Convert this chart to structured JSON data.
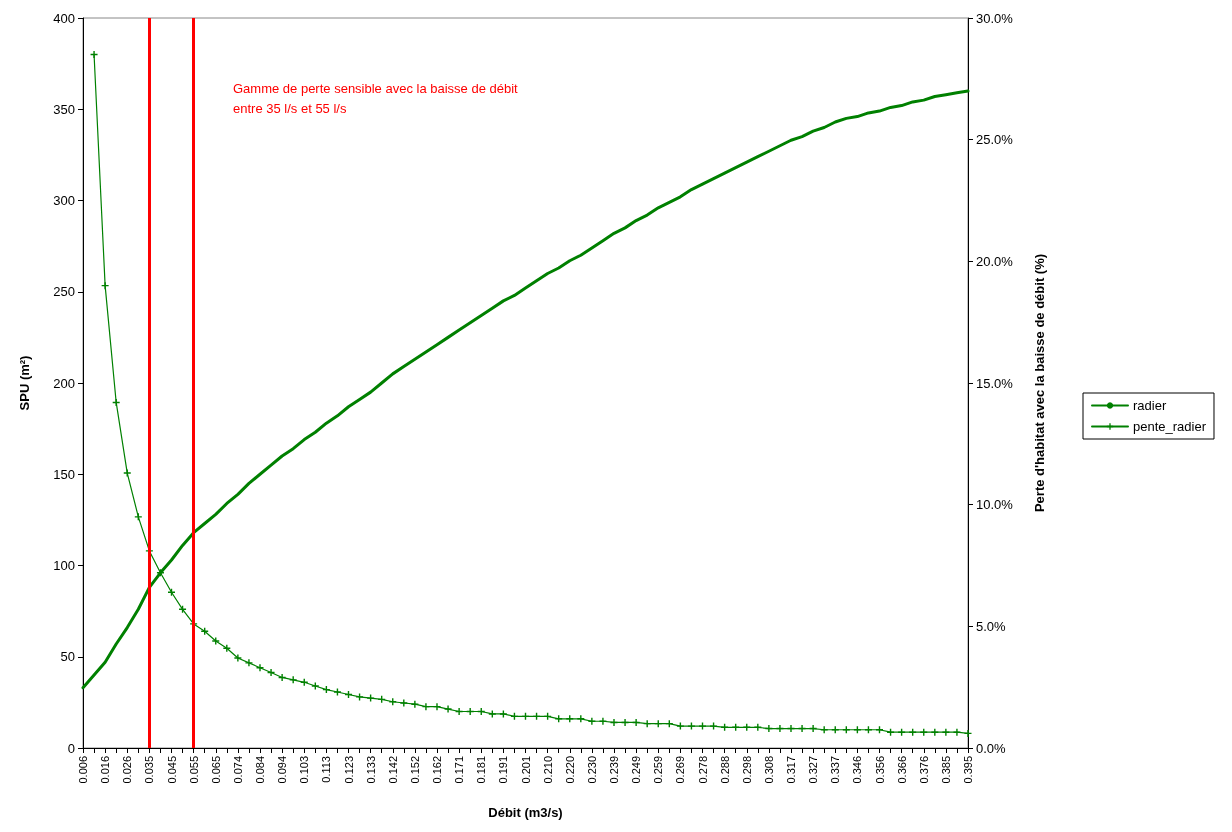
{
  "chart_data": {
    "type": "line",
    "xlabel": "Débit (m3/s)",
    "ylabel": "SPU (m²)",
    "y2label": "Perte d'habitat avec la baisse de débit (%)",
    "categories": [
      "0.006",
      null,
      "0.016",
      null,
      "0.026",
      null,
      "0.035",
      null,
      "0.045",
      null,
      "0.055",
      null,
      "0.065",
      null,
      "0.074",
      null,
      "0.084",
      null,
      "0.094",
      null,
      "0.103",
      null,
      "0.113",
      null,
      "0.123",
      null,
      "0.133",
      null,
      "0.142",
      null,
      "0.152",
      null,
      "0.162",
      null,
      "0.171",
      null,
      "0.181",
      null,
      "0.191",
      null,
      "0.201",
      null,
      "0.210",
      null,
      "0.220",
      null,
      "0.230",
      null,
      "0.239",
      null,
      "0.249",
      null,
      "0.259",
      null,
      "0.269",
      null,
      "0.278",
      null,
      "0.288",
      null,
      "0.298",
      null,
      "0.308",
      null,
      "0.317",
      null,
      "0.327",
      null,
      "0.337",
      null,
      "0.346",
      null,
      "0.356",
      null,
      "0.366",
      null,
      "0.376",
      null,
      "0.385",
      null,
      "0.395"
    ],
    "series": [
      {
        "name": "radier",
        "color": "#008000",
        "marker": "none",
        "values": [
          33,
          40,
          47,
          57,
          66,
          76,
          88,
          96,
          103,
          111,
          118,
          123,
          128,
          134,
          139,
          145,
          150,
          155,
          160,
          164,
          169,
          173,
          178,
          182,
          187,
          191,
          195,
          200,
          205,
          209,
          213,
          217,
          221,
          225,
          229,
          233,
          237,
          241,
          245,
          248,
          252,
          256,
          260,
          263,
          267,
          270,
          274,
          278,
          282,
          285,
          289,
          292,
          296,
          299,
          302,
          306,
          309,
          312,
          315,
          318,
          321,
          324,
          327,
          330,
          333,
          335,
          338,
          340,
          343,
          345,
          346,
          348,
          349,
          351,
          352,
          354,
          355,
          357,
          358,
          359,
          360
        ]
      },
      {
        "name": "pente_radier",
        "color": "#008000",
        "marker": "cross",
        "axis": "y2",
        "values": [
          null,
          28.5,
          19.0,
          14.2,
          11.3,
          9.5,
          8.1,
          7.2,
          6.4,
          5.7,
          5.1,
          4.8,
          4.4,
          4.1,
          3.7,
          3.5,
          3.3,
          3.1,
          2.9,
          2.8,
          2.7,
          2.55,
          2.4,
          2.3,
          2.2,
          2.1,
          2.05,
          2.0,
          1.9,
          1.85,
          1.8,
          1.7,
          1.7,
          1.6,
          1.5,
          1.5,
          1.5,
          1.4,
          1.4,
          1.3,
          1.3,
          1.3,
          1.3,
          1.2,
          1.2,
          1.2,
          1.1,
          1.1,
          1.05,
          1.05,
          1.05,
          1.0,
          1.0,
          1.0,
          0.9,
          0.9,
          0.9,
          0.9,
          0.85,
          0.85,
          0.85,
          0.85,
          0.8,
          0.8,
          0.8,
          0.8,
          0.8,
          0.75,
          0.75,
          0.75,
          0.75,
          0.75,
          0.75,
          0.65,
          0.65,
          0.65,
          0.65,
          0.65,
          0.65,
          0.65,
          0.6
        ]
      }
    ],
    "ylim": [
      0,
      400
    ],
    "yticks": [
      0,
      50,
      100,
      150,
      200,
      250,
      300,
      350,
      400
    ],
    "y2lim": [
      0,
      30
    ],
    "y2ticks": [
      {
        "value": 0,
        "label": "0.0%"
      },
      {
        "value": 5,
        "label": "5.0%"
      },
      {
        "value": 10,
        "label": "10.0%"
      },
      {
        "value": 15,
        "label": "15.0%"
      },
      {
        "value": 20,
        "label": "20.0%"
      },
      {
        "value": 25,
        "label": "25.0%"
      },
      {
        "value": 30,
        "label": "30.0%"
      }
    ],
    "ref_lines": [
      {
        "axis": "x",
        "value": "0.035",
        "color": "#ff0000"
      },
      {
        "axis": "x",
        "value": "0.055",
        "color": "#ff0000"
      }
    ],
    "annotations": [
      "Gamme de perte sensible avec la baisse de débit\nentre 35 l/s et 55 l/s"
    ],
    "grid": false,
    "legend": "right"
  }
}
